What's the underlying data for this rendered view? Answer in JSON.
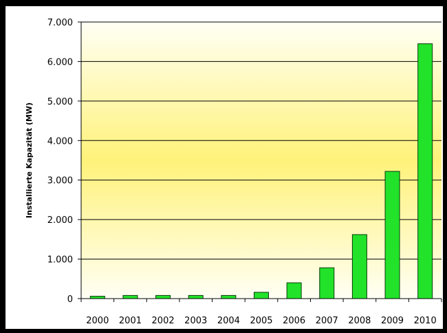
{
  "chart_data": {
    "type": "bar",
    "title": "",
    "xlabel": "",
    "ylabel": "Installierte Kapazität (MW)",
    "categories": [
      "2000",
      "2001",
      "2002",
      "2003",
      "2004",
      "2005",
      "2006",
      "2007",
      "2008",
      "2009",
      "2010"
    ],
    "values": [
      60,
      80,
      80,
      80,
      80,
      160,
      400,
      780,
      1620,
      3220,
      6450
    ],
    "ylim": [
      0,
      7000
    ],
    "yticks": [
      0,
      1000,
      2000,
      3000,
      4000,
      5000,
      6000,
      7000
    ],
    "ytick_labels": [
      "0",
      "1.000",
      "2.000",
      "3.000",
      "4.000",
      "5.000",
      "6.000",
      "7.000"
    ],
    "grid": true,
    "legend": "none",
    "colors": {
      "bar_fill": "#22e22a",
      "bar_stroke": "#0a3a0a",
      "background_top": "#fffff4",
      "background_mid": "#fff27a",
      "background_bottom": "#fffff4",
      "grid": "#000000"
    }
  }
}
